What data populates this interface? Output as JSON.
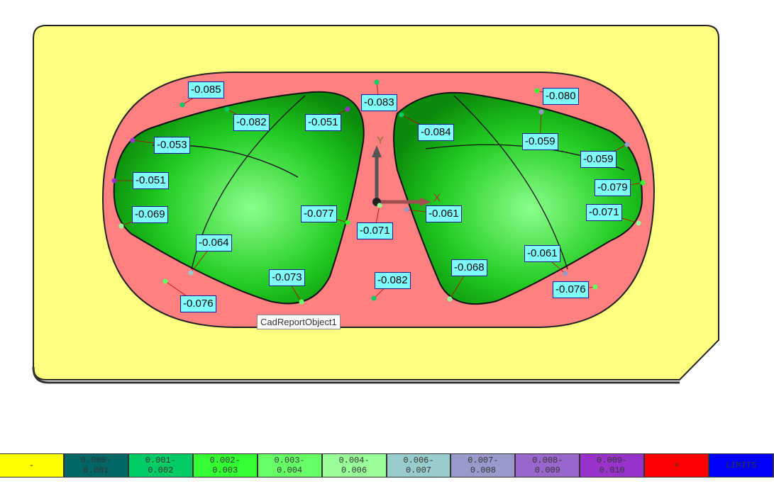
{
  "tooltip": "CadReportObject1",
  "axes": {
    "x": "X",
    "y": "Y"
  },
  "labels": [
    "-0.085",
    "-0.082",
    "-0.051",
    "-0.083",
    "-0.084",
    "-0.080",
    "-0.059",
    "-0.059",
    "-0.079",
    "-0.071",
    "-0.053",
    "-0.051",
    "-0.069",
    "-0.077",
    "-0.071",
    "-0.061",
    "-0.064",
    "-0.073",
    "-0.082",
    "-0.068",
    "-0.061",
    "-0.076",
    "-0.076"
  ],
  "legend": [
    {
      "text": "-",
      "color": "#ffff00"
    },
    {
      "text": "0.000-\n0.001",
      "color": "#006666"
    },
    {
      "text": "0.001-\n0.002",
      "color": "#00cc66"
    },
    {
      "text": "0.002-\n0.003",
      "color": "#33ff33"
    },
    {
      "text": "0.003-\n0.004",
      "color": "#66ff66"
    },
    {
      "text": "0.004-\n0.006",
      "color": "#99ff99"
    },
    {
      "text": "0.006-\n0.007",
      "color": "#99cccc"
    },
    {
      "text": "0.007-\n0.008",
      "color": "#9999cc"
    },
    {
      "text": "0.008-\n0.009",
      "color": "#9966cc"
    },
    {
      "text": "0.009-\n0.010",
      "color": "#9933cc"
    },
    {
      "text": "+",
      "color": "#ff0000"
    },
    {
      "text": "LIMITS",
      "color": "#0000ff"
    }
  ]
}
